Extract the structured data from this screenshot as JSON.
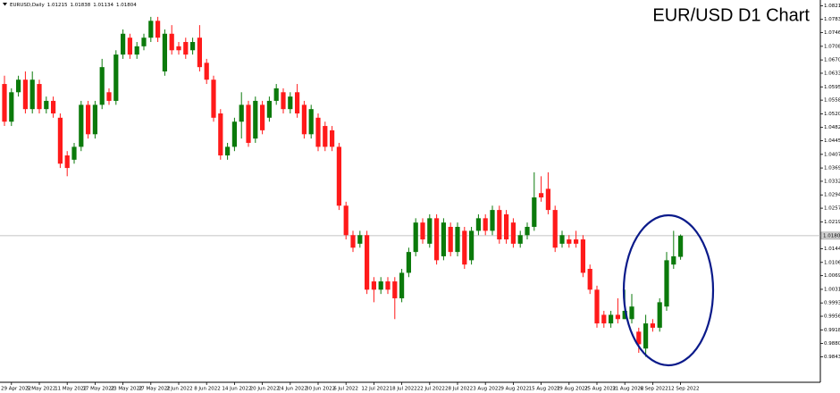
{
  "chart_data": {
    "type": "candlestick",
    "title": "EUR/USD D1 Chart",
    "symbol": "EURUSD,Daily",
    "categories": [
      null,
      "29 Apr 2022",
      null,
      null,
      null,
      "5 May 2022",
      null,
      null,
      null,
      "11 May 2022",
      null,
      null,
      null,
      "17 May 2022",
      null,
      null,
      null,
      "23 May 2022",
      null,
      null,
      null,
      "27 May 2022",
      null,
      null,
      null,
      "2 Jun 2022",
      null,
      null,
      null,
      "8 Jun 2022",
      null,
      null,
      null,
      "14 Jun 2022",
      null,
      null,
      null,
      "20 Jun 2022",
      null,
      null,
      null,
      "24 Jun 2022",
      null,
      null,
      null,
      "30 Jun 2022",
      null,
      null,
      null,
      "6 Jul 2022",
      null,
      null,
      null,
      "12 Jul 2022",
      null,
      null,
      null,
      "18 Jul 2022",
      null,
      null,
      null,
      "22 Jul 2022",
      null,
      null,
      null,
      "28 Jul 2022",
      null,
      null,
      null,
      "3 Aug 2022",
      null,
      null,
      null,
      "9 Aug 2022",
      null,
      null,
      null,
      "15 Aug 2022",
      null,
      null,
      null,
      "19 Aug 2022",
      null,
      null,
      null,
      "25 Aug 2022",
      null,
      null,
      null,
      "31 Aug 2022",
      null,
      null,
      null,
      "6 Sep 2022",
      null,
      null,
      null,
      "12 Sep 2022"
    ],
    "open": [
      1.0603,
      1.0498,
      1.058,
      1.0615,
      1.0533,
      1.0603,
      1.0533,
      1.0556,
      1.0509,
      1.0404,
      1.0392,
      1.0428,
      1.0545,
      1.0463,
      1.0545,
      1.058,
      1.0556,
      1.0685,
      1.0732,
      1.0685,
      1.0708,
      1.0732,
      1.0779,
      1.0638,
      1.0743,
      1.0708,
      1.072,
      1.0697,
      1.0732,
      1.0662,
      1.0615,
      1.0521,
      1.0404,
      1.0428,
      1.0498,
      1.0545,
      1.0451,
      1.0545,
      1.0509,
      1.0556,
      1.058,
      1.0533,
      1.058,
      1.0545,
      1.0463,
      1.0509,
      1.0486,
      1.0474,
      1.0428,
      1.0264,
      1.0182,
      1.0158,
      1.0182,
      1.0053,
      1.003,
      1.0053,
      1.0053,
      1.0006,
      1.0077,
      1.0135,
      1.0217,
      1.0158,
      1.0229,
      1.0123,
      1.0205,
      1.0135,
      1.0194,
      1.0112,
      1.0194,
      1.0229,
      1.0194,
      1.0252,
      1.024,
      1.0217,
      1.0158,
      1.0182,
      1.0205,
      1.0299,
      1.0311,
      1.0252,
      1.0158,
      1.017,
      1.017,
      1.017,
      1.0088,
      1.003,
      0.996,
      0.9936,
      0.996,
      0.9948,
      0.9948,
      0.9913,
      0.9866,
      0.9936,
      0.9924,
      0.9983,
      1.01,
      1.01215
    ],
    "high": [
      1.0626,
      1.0591,
      1.0626,
      1.0638,
      1.0638,
      1.0615,
      1.0568,
      1.0568,
      1.0521,
      1.0416,
      1.0439,
      1.0556,
      1.0556,
      1.0556,
      1.0673,
      1.0591,
      1.0697,
      1.0755,
      1.0743,
      1.072,
      1.0743,
      1.079,
      1.079,
      1.0755,
      1.0767,
      1.072,
      1.0732,
      1.0732,
      1.0767,
      1.0673,
      1.0626,
      1.0533,
      1.0439,
      1.0509,
      1.058,
      1.0556,
      1.0568,
      1.0556,
      1.0568,
      1.0603,
      1.0591,
      1.058,
      1.0603,
      1.0556,
      1.0545,
      1.0521,
      1.0498,
      1.0486,
      1.0439,
      1.0275,
      1.0194,
      1.0194,
      1.0194,
      1.0065,
      1.0065,
      1.0065,
      1.0065,
      1.0088,
      1.0147,
      1.0229,
      1.0229,
      1.024,
      1.024,
      1.0229,
      1.0217,
      1.0217,
      1.0205,
      1.0205,
      1.024,
      1.024,
      1.0264,
      1.0264,
      1.0252,
      1.0229,
      1.0194,
      1.0217,
      1.0357,
      1.0346,
      1.0357,
      1.0264,
      1.0194,
      1.0182,
      1.0194,
      1.0182,
      1.01,
      1.0041,
      0.9971,
      0.9971,
      1.0006,
      1.003,
      1.0018,
      0.9924,
      0.996,
      0.9948,
      1.0006,
      1.0135,
      1.0194,
      1.01838
    ],
    "low": [
      1.0486,
      1.0486,
      1.0568,
      1.0521,
      1.0521,
      1.0521,
      1.0521,
      1.0509,
      1.0369,
      1.0346,
      1.0381,
      1.0416,
      1.0451,
      1.0451,
      1.0533,
      1.0545,
      1.0545,
      1.0673,
      1.0673,
      1.0673,
      1.0697,
      1.072,
      1.072,
      1.0626,
      1.0685,
      1.0685,
      1.0673,
      1.0685,
      1.0638,
      1.0603,
      1.0498,
      1.0392,
      1.0392,
      1.0416,
      1.0451,
      1.0428,
      1.0439,
      1.0463,
      1.0498,
      1.0545,
      1.0521,
      1.0521,
      1.0509,
      1.0451,
      1.0451,
      1.0416,
      1.0416,
      1.0416,
      1.0252,
      1.017,
      1.0135,
      1.0147,
      1.0018,
      0.9995,
      1.0018,
      1.0018,
      0.9948,
      0.9995,
      1.0065,
      1.0123,
      1.0158,
      1.0147,
      1.01,
      1.0112,
      1.0123,
      1.0123,
      1.0088,
      1.01,
      1.0182,
      1.0182,
      1.0182,
      1.0158,
      1.0158,
      1.0147,
      1.0147,
      1.017,
      1.0194,
      1.0275,
      1.024,
      1.0135,
      1.0147,
      1.0147,
      1.0147,
      1.0065,
      1.0018,
      0.9924,
      0.9924,
      0.9924,
      0.9936,
      0.9948,
      0.9936,
      0.9854,
      0.9843,
      0.9913,
      0.9913,
      0.9971,
      1.0088,
      1.01134
    ],
    "close": [
      1.0498,
      1.058,
      1.0615,
      1.0533,
      1.0615,
      1.0533,
      1.0556,
      1.0521,
      1.0381,
      1.0369,
      1.0428,
      1.0545,
      1.0463,
      1.0545,
      1.065,
      1.0556,
      1.0685,
      1.0743,
      1.0685,
      1.0708,
      1.0732,
      1.0779,
      1.0732,
      1.0743,
      1.0697,
      1.0697,
      1.0685,
      1.072,
      1.065,
      1.0615,
      1.0509,
      1.0404,
      1.0428,
      1.0498,
      1.0545,
      1.0439,
      1.0556,
      1.0474,
      1.0556,
      1.0591,
      1.0533,
      1.0568,
      1.0521,
      1.0463,
      1.0533,
      1.0428,
      1.0428,
      1.0428,
      1.0264,
      1.0182,
      1.0147,
      1.0182,
      1.003,
      1.003,
      1.0053,
      1.003,
      1.0006,
      1.0077,
      1.0135,
      1.0217,
      1.017,
      1.0229,
      1.0112,
      1.0217,
      1.0135,
      1.0205,
      1.01,
      1.0194,
      1.0229,
      1.0194,
      1.0252,
      1.017,
      1.017,
      1.0158,
      1.0182,
      1.0205,
      1.0287,
      1.0287,
      1.0252,
      1.0147,
      1.0182,
      1.0158,
      1.0158,
      1.0077,
      1.003,
      0.9936,
      0.9936,
      0.996,
      0.9948,
      0.9971,
      0.9983,
      0.9878,
      0.9936,
      0.9924,
      0.9995,
      1.0112,
      1.0123,
      1.01804
    ],
    "up_color": "#0b7a0b",
    "down_color": "#ff1a1a",
    "price_line": true,
    "grid": false,
    "ylim": [
      0.9772,
      1.0837
    ],
    "yticks": [
      {
        "value": 1.0821,
        "label": "1.08210"
      },
      {
        "value": 1.0783,
        "label": "1.07830"
      },
      {
        "value": 1.0746,
        "label": "1.07460"
      },
      {
        "value": 1.0708,
        "label": "1.07080"
      },
      {
        "value": 1.067,
        "label": "1.06700"
      },
      {
        "value": 1.0633,
        "label": "1.06330"
      },
      {
        "value": 1.0595,
        "label": "1.05950"
      },
      {
        "value": 1.0558,
        "label": "1.05580"
      },
      {
        "value": 1.052,
        "label": "1.05200"
      },
      {
        "value": 1.0482,
        "label": "1.04820"
      },
      {
        "value": 1.0445,
        "label": "1.04450"
      },
      {
        "value": 1.0407,
        "label": "1.04070"
      },
      {
        "value": 1.0369,
        "label": "1.03690"
      },
      {
        "value": 1.0332,
        "label": "1.03320"
      },
      {
        "value": 1.0294,
        "label": "1.02940"
      },
      {
        "value": 1.0257,
        "label": "1.02570"
      },
      {
        "value": 1.0219,
        "label": "1.02190"
      },
      {
        "value": 1.0144,
        "label": "1.01440"
      },
      {
        "value": 1.0106,
        "label": "1.01060"
      },
      {
        "value": 1.0069,
        "label": "1.00690"
      },
      {
        "value": 1.0031,
        "label": "1.00310"
      },
      {
        "value": 0.9993,
        "label": "0.99930"
      },
      {
        "value": 0.9956,
        "label": "0.99560"
      },
      {
        "value": 0.9918,
        "label": "0.99180"
      },
      {
        "value": 0.988,
        "label": "0.98800"
      },
      {
        "value": 0.9843,
        "label": "0.98430"
      }
    ]
  }
}
